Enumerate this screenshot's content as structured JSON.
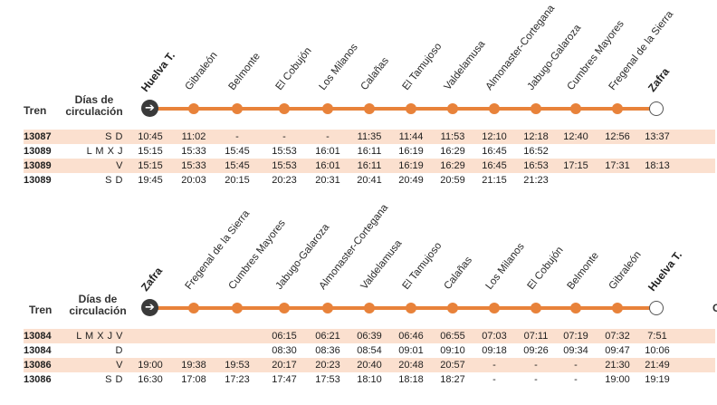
{
  "headers": {
    "tren": "Tren",
    "dias": "Días de circulación"
  },
  "top": {
    "stations": [
      "Huelva T.",
      "Gibraleón",
      "Belmonte",
      "El Cobujón",
      "Los Milanos",
      "Calañas",
      "El Tamujoso",
      "Valdelamusa",
      "Almonaster-Cortegana",
      "Jabugo-Galaroza",
      "Cumbres Mayores",
      "Fregenal de la Sierra",
      "Zafra"
    ],
    "rows": [
      {
        "tren": "13087",
        "dias": "S D",
        "times": [
          "10:45",
          "11:02",
          "-",
          "-",
          "-",
          "11:35",
          "11:44",
          "11:53",
          "12:10",
          "12:18",
          "12:40",
          "12:56",
          "13:37"
        ]
      },
      {
        "tren": "13089",
        "dias": "L M X J",
        "times": [
          "15:15",
          "15:33",
          "15:45",
          "15:53",
          "16:01",
          "16:11",
          "16:19",
          "16:29",
          "16:45",
          "16:52",
          "",
          "",
          ""
        ]
      },
      {
        "tren": "13089",
        "dias": "V",
        "times": [
          "15:15",
          "15:33",
          "15:45",
          "15:53",
          "16:01",
          "16:11",
          "16:19",
          "16:29",
          "16:45",
          "16:53",
          "17:15",
          "17:31",
          "18:13"
        ]
      },
      {
        "tren": "13089",
        "dias": "S D",
        "times": [
          "19:45",
          "20:03",
          "20:15",
          "20:23",
          "20:31",
          "20:41",
          "20:49",
          "20:59",
          "21:15",
          "21:23",
          "",
          "",
          ""
        ]
      }
    ]
  },
  "bottom": {
    "stations": [
      "Zafra",
      "Fregenal de la Sierra",
      "Cumbres Mayores",
      "Jabugo-Galaroza",
      "Almonaster-Cortegana",
      "Valdelamusa",
      "El Tamujoso",
      "Calañas",
      "Los Milanos",
      "El Cobujón",
      "Belmonte",
      "Gibraleón",
      "Huelva T."
    ],
    "rows": [
      {
        "tren": "13084",
        "dias": "L M X J V",
        "times": [
          "",
          "",
          "",
          "06:15",
          "06:21",
          "06:39",
          "06:46",
          "06:55",
          "07:03",
          "07:11",
          "07:19",
          "07:32",
          "7:51"
        ]
      },
      {
        "tren": "13084",
        "dias": "D",
        "times": [
          "",
          "",
          "",
          "08:30",
          "08:36",
          "08:54",
          "09:01",
          "09:10",
          "09:18",
          "09:26",
          "09:34",
          "09:47",
          "10:06"
        ]
      },
      {
        "tren": "13086",
        "dias": "V",
        "times": [
          "19:00",
          "19:38",
          "19:53",
          "20:17",
          "20:23",
          "20:40",
          "20:48",
          "20:57",
          "-",
          "-",
          "-",
          "21:30",
          "21:49"
        ]
      },
      {
        "tren": "13086",
        "dias": "S D",
        "times": [
          "16:30",
          "17:08",
          "17:23",
          "17:47",
          "17:53",
          "18:10",
          "18:18",
          "18:27",
          "-",
          "-",
          "-",
          "19:00",
          "19:19"
        ]
      }
    ]
  },
  "edge_letter": "C",
  "icons": {
    "start": "arrow-right-icon",
    "end": "end-circle-icon"
  },
  "colors": {
    "route": "#e8823a",
    "band": "#fbe0cf"
  }
}
